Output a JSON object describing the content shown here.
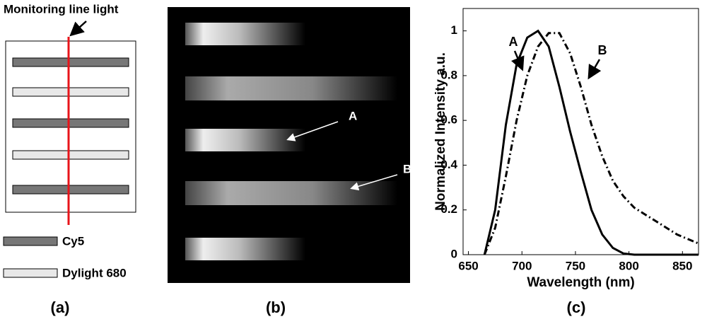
{
  "panel_a": {
    "line_label": "Monitoring line light",
    "legend": [
      "Cy5",
      "Dylight 680"
    ],
    "caption": "(a)"
  },
  "panel_b": {
    "labels": [
      "A",
      "B"
    ],
    "caption": "(b)"
  },
  "chart_data": {
    "type": "line",
    "caption": "(c)",
    "x_label": "Wavelength (nm)",
    "y_label": "Normalized Intensity a.u.",
    "annotations": [
      "A",
      "B"
    ],
    "x": [
      665,
      675,
      685,
      695,
      705,
      715,
      725,
      735,
      745,
      755,
      765,
      775,
      785,
      795,
      805,
      815,
      825,
      835,
      845,
      855,
      865
    ],
    "series": [
      {
        "name": "A",
        "color": "#000000",
        "linestyle": "solid",
        "values": [
          0,
          0.2,
          0.58,
          0.85,
          0.97,
          1.0,
          0.93,
          0.75,
          0.55,
          0.37,
          0.2,
          0.09,
          0.03,
          0.005,
          0,
          0,
          0,
          0,
          0,
          0,
          0
        ]
      },
      {
        "name": "B",
        "color": "#000000",
        "linestyle": "dashdot",
        "values": [
          0,
          0.12,
          0.35,
          0.6,
          0.8,
          0.93,
          0.99,
          0.99,
          0.9,
          0.75,
          0.58,
          0.44,
          0.33,
          0.26,
          0.21,
          0.18,
          0.15,
          0.12,
          0.09,
          0.07,
          0.05
        ]
      }
    ],
    "xlim": [
      645,
      865
    ],
    "ylim": [
      0,
      1.1
    ],
    "xticks": [
      650,
      700,
      750,
      800,
      850
    ],
    "yticks": [
      0,
      0.2,
      0.4,
      0.6,
      0.8,
      1
    ]
  }
}
